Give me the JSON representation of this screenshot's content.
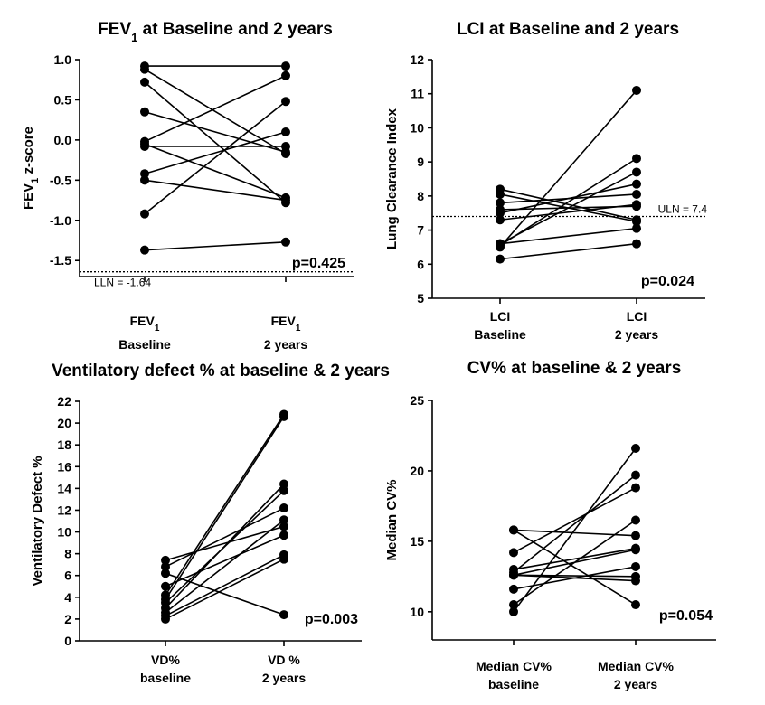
{
  "chart_data": [
    {
      "id": "fev1",
      "type": "scatter",
      "title": "FEV1 at Baseline and 2 years",
      "title_main": "FEV",
      "title_sub": "1",
      "title_rest": " at Baseline and 2 years",
      "ylabel": "FEV1 z-score",
      "ylabel_main": "FEV",
      "ylabel_sub": "1",
      "ylabel_rest": " z-score",
      "ylim": [
        -1.7,
        1.0
      ],
      "yticks": [
        1.0,
        0.5,
        0.0,
        -0.5,
        -1.0,
        -1.5
      ],
      "ytick_labels": [
        "1.0",
        "0.5",
        "0.0",
        "-0.5",
        "-1.0",
        "-1.5"
      ],
      "categories": [
        {
          "line1_main": "FEV",
          "line1_sub": "1",
          "line2": "Baseline"
        },
        {
          "line1_main": "FEV",
          "line1_sub": "1",
          "line2": "2 years"
        }
      ],
      "pairs": [
        [
          0.92,
          0.92
        ],
        [
          0.88,
          -0.17
        ],
        [
          0.72,
          -0.78
        ],
        [
          0.35,
          -0.15
        ],
        [
          -0.02,
          0.8
        ],
        [
          -0.05,
          -0.72
        ],
        [
          -0.08,
          -0.08
        ],
        [
          -0.42,
          0.1
        ],
        [
          -0.5,
          -0.75
        ],
        [
          -0.92,
          0.48
        ],
        [
          -1.37,
          -1.27
        ]
      ],
      "ref_line": {
        "value": -1.64,
        "label": "LLN = -1.64"
      },
      "p_value": "p=0.425"
    },
    {
      "id": "lci",
      "type": "scatter",
      "title": "LCI at Baseline and 2 years",
      "ylabel": "Lung Clearance Index",
      "ylim": [
        5,
        12
      ],
      "yticks": [
        5,
        6,
        7,
        8,
        9,
        10,
        11,
        12
      ],
      "ytick_labels": [
        "5",
        "6",
        "7",
        "8",
        "9",
        "10",
        "11",
        "12"
      ],
      "categories": [
        {
          "line1": "LCI",
          "line2": "Baseline"
        },
        {
          "line1": "LCI",
          "line2": "2 years"
        }
      ],
      "pairs": [
        [
          8.2,
          7.3
        ],
        [
          8.05,
          7.25
        ],
        [
          7.8,
          8.05
        ],
        [
          7.6,
          7.7
        ],
        [
          7.5,
          8.35
        ],
        [
          7.3,
          7.75
        ],
        [
          6.6,
          8.7
        ],
        [
          6.55,
          9.1
        ],
        [
          6.5,
          11.1
        ],
        [
          6.6,
          7.05
        ],
        [
          6.15,
          6.6
        ]
      ],
      "ref_line": {
        "value": 7.4,
        "label": "ULN = 7.4"
      },
      "p_value": "p=0.024"
    },
    {
      "id": "vd",
      "type": "scatter",
      "title": "Ventilatory defect % at baseline & 2 years",
      "ylabel": "Ventilatory Defect %",
      "ylim": [
        0,
        22
      ],
      "yticks": [
        0,
        2,
        4,
        6,
        8,
        10,
        12,
        14,
        16,
        18,
        20,
        22
      ],
      "ytick_labels": [
        "0",
        "2",
        "4",
        "6",
        "8",
        "10",
        "12",
        "14",
        "16",
        "18",
        "20",
        "22"
      ],
      "categories": [
        {
          "line1": "VD%",
          "line2": "baseline"
        },
        {
          "line1": "VD %",
          "line2": "2 years"
        }
      ],
      "pairs": [
        [
          7.4,
          10.5
        ],
        [
          6.8,
          12.2
        ],
        [
          6.2,
          2.4
        ],
        [
          5.0,
          9.7
        ],
        [
          4.2,
          20.8
        ],
        [
          3.8,
          20.6
        ],
        [
          3.5,
          13.8
        ],
        [
          3.0,
          14.4
        ],
        [
          2.6,
          11.1
        ],
        [
          2.3,
          7.9
        ],
        [
          2.0,
          7.5
        ]
      ],
      "p_value": "p=0.003"
    },
    {
      "id": "cv",
      "type": "scatter",
      "title": "CV% at baseline & 2 years",
      "ylabel": "Median CV%",
      "ylim": [
        8,
        25
      ],
      "yticks": [
        10,
        15,
        20,
        25
      ],
      "ytick_labels": [
        "10",
        "15",
        "20",
        "25"
      ],
      "categories": [
        {
          "line1": "Median CV%",
          "line2": "baseline"
        },
        {
          "line1": "Median CV%",
          "line2": "2 years"
        }
      ],
      "pairs": [
        [
          15.8,
          15.4
        ],
        [
          15.8,
          10.5
        ],
        [
          14.2,
          18.8
        ],
        [
          13.0,
          14.5
        ],
        [
          12.8,
          19.7
        ],
        [
          12.6,
          14.4
        ],
        [
          12.6,
          12.5
        ],
        [
          11.6,
          13.2
        ],
        [
          10.5,
          16.5
        ],
        [
          10.0,
          21.6
        ],
        [
          12.6,
          12.2
        ]
      ],
      "p_value": "p=0.054"
    }
  ]
}
